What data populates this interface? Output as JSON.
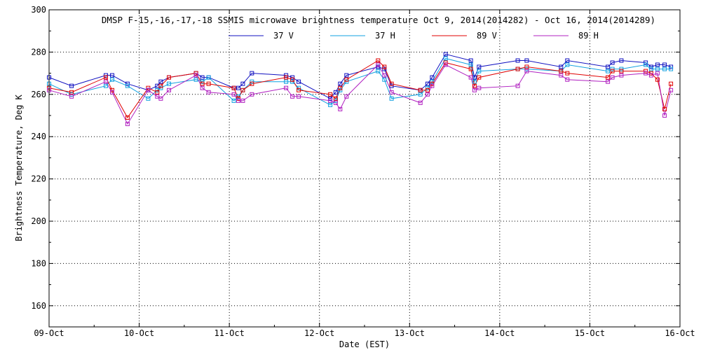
{
  "chart_data": {
    "type": "line",
    "title": "DMSP F-15,-16,-17,-18 SSMIS microwave brightness temperature Oct  9, 2014(2014282) - Oct 16, 2014(2014289)",
    "xlabel": "Date (EST)",
    "ylabel": "Brightness Temperature, Deg K",
    "xlim": [
      0,
      7
    ],
    "ylim": [
      150,
      300
    ],
    "grid": true,
    "legend_position": "top-center",
    "x_ticks": [
      {
        "value": 0,
        "label": "09-Oct"
      },
      {
        "value": 1,
        "label": "10-Oct"
      },
      {
        "value": 2,
        "label": "11-Oct"
      },
      {
        "value": 3,
        "label": "12-Oct"
      },
      {
        "value": 4,
        "label": "13-Oct"
      },
      {
        "value": 5,
        "label": "14-Oct"
      },
      {
        "value": 6,
        "label": "15-Oct"
      },
      {
        "value": 7,
        "label": "16-Oct"
      }
    ],
    "y_ticks": [
      160,
      180,
      200,
      220,
      240,
      260,
      280,
      300
    ],
    "x_days": [
      0.0,
      0.25,
      0.63,
      0.7,
      0.87,
      1.1,
      1.2,
      1.24,
      1.33,
      1.63,
      1.7,
      1.77,
      2.05,
      2.1,
      2.15,
      2.25,
      2.63,
      2.7,
      2.77,
      3.12,
      3.18,
      3.23,
      3.3,
      3.65,
      3.72,
      3.8,
      4.12,
      4.2,
      4.25,
      4.4,
      4.68,
      4.72,
      4.77,
      5.2,
      5.3,
      5.68,
      5.75,
      6.2,
      6.25,
      6.35,
      6.62,
      6.68,
      6.75,
      6.83,
      6.9
    ],
    "series": [
      {
        "name": "37 V",
        "color": "#1010c0",
        "values": [
          268,
          264,
          269,
          269,
          265,
          262,
          264,
          266,
          268,
          270,
          268,
          268,
          263,
          263,
          265,
          270,
          269,
          268,
          266,
          258,
          261,
          265,
          269,
          273,
          272,
          264,
          262,
          265,
          268,
          279,
          276,
          268,
          273,
          276,
          276,
          273,
          276,
          273,
          275,
          276,
          275,
          273,
          274,
          274,
          273
        ]
      },
      {
        "name": "37 H",
        "color": "#10a0e0",
        "values": [
          265,
          260,
          264,
          267,
          264,
          258,
          262,
          263,
          265,
          267,
          266,
          268,
          257,
          259,
          262,
          266,
          266,
          266,
          263,
          255,
          257,
          262,
          266,
          271,
          267,
          258,
          260,
          263,
          266,
          277,
          274,
          266,
          271,
          272,
          272,
          271,
          274,
          271,
          272,
          272,
          274,
          272,
          272,
          272,
          272
        ]
      },
      {
        "name": "89 V",
        "color": "#e00000",
        "values": [
          263,
          261,
          268,
          262,
          249,
          263,
          261,
          264,
          268,
          270,
          265,
          265,
          263,
          258,
          262,
          265,
          268,
          267,
          262,
          260,
          258,
          263,
          267,
          276,
          273,
          265,
          262,
          262,
          265,
          275,
          272,
          264,
          268,
          272,
          273,
          271,
          270,
          268,
          271,
          271,
          271,
          270,
          267,
          253,
          265
        ]
      },
      {
        "name": "89 H",
        "color": "#b020c0",
        "values": [
          262,
          259,
          266,
          261,
          246,
          262,
          259,
          258,
          262,
          269,
          263,
          261,
          260,
          257,
          257,
          260,
          263,
          259,
          259,
          257,
          256,
          253,
          259,
          274,
          269,
          261,
          256,
          260,
          264,
          274,
          268,
          262,
          263,
          264,
          271,
          269,
          267,
          266,
          268,
          269,
          270,
          269,
          270,
          250,
          262
        ]
      }
    ]
  }
}
